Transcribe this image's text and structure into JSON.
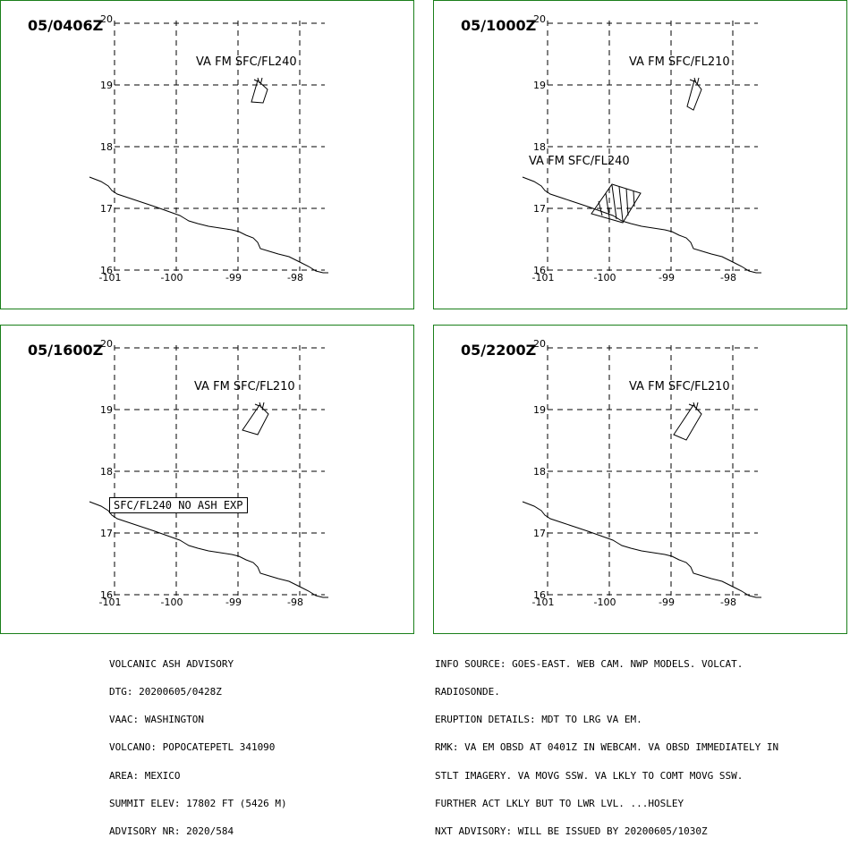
{
  "panels": [
    {
      "time": "05/0406Z",
      "y_labels": [
        "20",
        "19",
        "18",
        "17",
        "16"
      ],
      "x_labels": [
        "-101",
        "-100",
        "-99",
        "-98"
      ],
      "labels": [
        "VA FM SFC/FL240"
      ],
      "note": ""
    },
    {
      "time": "05/1000Z",
      "y_labels": [
        "20",
        "19",
        "18",
        "17",
        "16"
      ],
      "x_labels": [
        "-101",
        "-100",
        "-99",
        "-98"
      ],
      "labels": [
        "VA FM SFC/FL210",
        "VA FM SFC/FL240"
      ],
      "note": ""
    },
    {
      "time": "05/1600Z",
      "y_labels": [
        "20",
        "19",
        "18",
        "17",
        "16"
      ],
      "x_labels": [
        "-101",
        "-100",
        "-99",
        "-98"
      ],
      "labels": [
        "VA FM SFC/FL210"
      ],
      "note": "SFC/FL240 NO ASH EXP"
    },
    {
      "time": "05/2200Z",
      "y_labels": [
        "20",
        "19",
        "18",
        "17",
        "16"
      ],
      "x_labels": [
        "-101",
        "-100",
        "-99",
        "-98"
      ],
      "labels": [
        "VA FM SFC/FL210"
      ],
      "note": ""
    }
  ],
  "advisory_left": [
    "VOLCANIC ASH ADVISORY",
    "DTG: 20200605/0428Z",
    "VAAC: WASHINGTON",
    "VOLCANO: POPOCATEPETL 341090",
    "AREA: MEXICO",
    "SUMMIT ELEV: 17802 FT (5426 M)",
    "ADVISORY NR: 2020/584"
  ],
  "advisory_right": [
    "INFO SOURCE: GOES-EAST. WEB CAM. NWP MODELS. VOLCAT.",
    "RADIOSONDE.",
    "ERUPTION DETAILS: MDT TO LRG VA EM.",
    "RMK: VA EM OBSD AT 0401Z IN WEBCAM. VA OBSD IMMEDIATELY IN",
    "STLT IMAGERY. VA MOVG SSW. VA LKLY TO COMT MOVG SSW.",
    "FURTHER ACT LKLY BUT TO LWR LVL. ...HOSLEY",
    "NXT ADVISORY: WILL BE ISSUED BY 20200605/1030Z"
  ]
}
